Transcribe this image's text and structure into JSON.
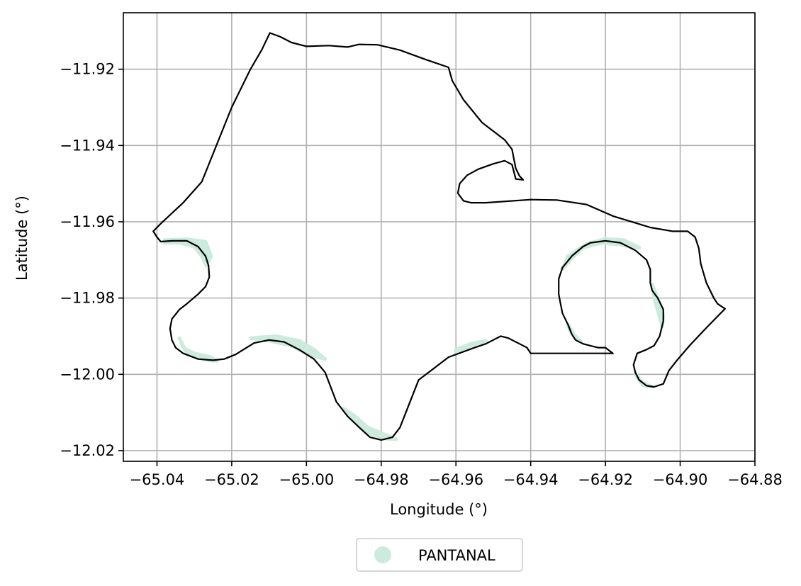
{
  "chart_data": {
    "type": "map",
    "title": "",
    "xlabel": "Longitude (°)",
    "ylabel": "Latitude (°)",
    "xlim": [
      -65.049,
      -64.88
    ],
    "ylim": [
      -12.0228,
      -11.9052
    ],
    "xticks": [
      -65.04,
      -65.02,
      -65.0,
      -64.98,
      -64.96,
      -64.94,
      -64.92,
      -64.9,
      -64.88
    ],
    "xtick_labels": [
      "−65.04",
      "−65.02",
      "−65.00",
      "−64.98",
      "−64.96",
      "−64.94",
      "−64.92",
      "−64.90",
      "−64.88"
    ],
    "yticks": [
      -11.92,
      -11.94,
      -11.96,
      -11.98,
      -12.0,
      -12.02
    ],
    "ytick_labels": [
      "−11.92",
      "−11.94",
      "−11.96",
      "−11.98",
      "−12.00",
      "−12.02"
    ],
    "grid": true,
    "legend_position": "bottom-center",
    "legend": [
      {
        "label": "PANTANAL",
        "color": "#cdebdd"
      }
    ],
    "boundary_color": "#000000",
    "boundary": [
      [
        -65.0098,
        -11.9105
      ],
      [
        -65.007,
        -11.9115
      ],
      [
        -65.004,
        -11.913
      ],
      [
        -65.0,
        -11.914
      ],
      [
        -64.994,
        -11.9138
      ],
      [
        -64.989,
        -11.9142
      ],
      [
        -64.986,
        -11.9135
      ],
      [
        -64.981,
        -11.9136
      ],
      [
        -64.975,
        -11.915
      ],
      [
        -64.968,
        -11.9175
      ],
      [
        -64.962,
        -11.9195
      ],
      [
        -64.961,
        -11.923
      ],
      [
        -64.958,
        -11.928
      ],
      [
        -64.953,
        -11.934
      ],
      [
        -64.947,
        -11.9385
      ],
      [
        -64.945,
        -11.941
      ],
      [
        -64.944,
        -11.946
      ],
      [
        -64.943,
        -11.948
      ],
      [
        -64.942,
        -11.949
      ],
      [
        -64.944,
        -11.9488
      ],
      [
        -64.945,
        -11.945
      ],
      [
        -64.947,
        -11.944
      ],
      [
        -64.95,
        -11.9448
      ],
      [
        -64.954,
        -11.9462
      ],
      [
        -64.957,
        -11.9478
      ],
      [
        -64.959,
        -11.95
      ],
      [
        -64.9595,
        -11.9525
      ],
      [
        -64.958,
        -11.9545
      ],
      [
        -64.956,
        -11.955
      ],
      [
        -64.952,
        -11.955
      ],
      [
        -64.94,
        -11.9542
      ],
      [
        -64.933,
        -11.9543
      ],
      [
        -64.925,
        -11.9555
      ],
      [
        -64.918,
        -11.9585
      ],
      [
        -64.908,
        -11.9615
      ],
      [
        -64.902,
        -11.9625
      ],
      [
        -64.898,
        -11.9625
      ],
      [
        -64.896,
        -11.964
      ],
      [
        -64.895,
        -11.967
      ],
      [
        -64.8945,
        -11.971
      ],
      [
        -64.893,
        -11.976
      ],
      [
        -64.891,
        -11.98
      ],
      [
        -64.89,
        -11.9815
      ],
      [
        -64.888,
        -11.9828
      ],
      [
        -64.893,
        -11.9878
      ],
      [
        -64.8975,
        -11.9925
      ],
      [
        -64.901,
        -11.9965
      ],
      [
        -64.903,
        -11.999
      ],
      [
        -64.9045,
        -12.0025
      ],
      [
        -64.907,
        -12.0033
      ],
      [
        -64.909,
        -12.003
      ],
      [
        -64.911,
        -12.0015
      ],
      [
        -64.912,
        -11.9995
      ],
      [
        -64.9125,
        -11.9975
      ],
      [
        -64.9115,
        -11.9945
      ],
      [
        -64.909,
        -11.9935
      ],
      [
        -64.907,
        -11.9925
      ],
      [
        -64.9055,
        -11.99
      ],
      [
        -64.9045,
        -11.986
      ],
      [
        -64.9045,
        -11.983
      ],
      [
        -64.906,
        -11.98
      ],
      [
        -64.9075,
        -11.978
      ],
      [
        -64.908,
        -11.976
      ],
      [
        -64.908,
        -11.9725
      ],
      [
        -64.909,
        -11.97
      ],
      [
        -64.912,
        -11.9675
      ],
      [
        -64.916,
        -11.9655
      ],
      [
        -64.92,
        -11.965
      ],
      [
        -64.924,
        -11.9655
      ],
      [
        -64.926,
        -11.9665
      ],
      [
        -64.929,
        -11.969
      ],
      [
        -64.9315,
        -11.972
      ],
      [
        -64.9325,
        -11.975
      ],
      [
        -64.9325,
        -11.979
      ],
      [
        -64.932,
        -11.9815
      ],
      [
        -64.9315,
        -11.984
      ],
      [
        -64.93,
        -11.987
      ],
      [
        -64.929,
        -11.9895
      ],
      [
        -64.928,
        -11.991
      ],
      [
        -64.926,
        -11.992
      ],
      [
        -64.924,
        -11.9925
      ],
      [
        -64.922,
        -11.993
      ],
      [
        -64.92,
        -11.993
      ],
      [
        -64.918,
        -11.9945
      ],
      [
        -64.94,
        -11.9945
      ],
      [
        -64.941,
        -11.993
      ],
      [
        -64.943,
        -11.992
      ],
      [
        -64.946,
        -11.9905
      ],
      [
        -64.948,
        -11.99
      ],
      [
        -64.952,
        -11.992
      ],
      [
        -64.955,
        -11.993
      ],
      [
        -64.962,
        -11.9955
      ],
      [
        -64.966,
        -11.9985
      ],
      [
        -64.97,
        -12.0015
      ],
      [
        -64.973,
        -12.009
      ],
      [
        -64.975,
        -12.014
      ],
      [
        -64.977,
        -12.0165
      ],
      [
        -64.98,
        -12.0172
      ],
      [
        -64.983,
        -12.0165
      ],
      [
        -64.986,
        -12.0138
      ],
      [
        -64.989,
        -12.011
      ],
      [
        -64.992,
        -12.0072
      ],
      [
        -64.995,
        -11.9995
      ],
      [
        -64.998,
        -11.996
      ],
      [
        -65.002,
        -11.9935
      ],
      [
        -65.006,
        -11.9915
      ],
      [
        -65.01,
        -11.991
      ],
      [
        -65.014,
        -11.9918
      ],
      [
        -65.019,
        -11.9948
      ],
      [
        -65.022,
        -11.996
      ],
      [
        -65.025,
        -11.9963
      ],
      [
        -65.029,
        -11.996
      ],
      [
        -65.033,
        -11.9945
      ],
      [
        -65.035,
        -11.993
      ],
      [
        -65.036,
        -11.991
      ],
      [
        -65.0365,
        -11.988
      ],
      [
        -65.036,
        -11.9855
      ],
      [
        -65.034,
        -11.983
      ],
      [
        -65.032,
        -11.9815
      ],
      [
        -65.029,
        -11.979
      ],
      [
        -65.027,
        -11.977
      ],
      [
        -65.026,
        -11.9745
      ],
      [
        -65.0262,
        -11.9715
      ],
      [
        -65.027,
        -11.969
      ],
      [
        -65.029,
        -11.9665
      ],
      [
        -65.032,
        -11.965
      ],
      [
        -65.036,
        -11.965
      ],
      [
        -65.039,
        -11.9652
      ],
      [
        -65.04,
        -11.964
      ],
      [
        -65.041,
        -11.9625
      ],
      [
        -65.039,
        -11.9605
      ],
      [
        -65.033,
        -11.955
      ],
      [
        -65.028,
        -11.9495
      ],
      [
        -65.02,
        -11.93
      ],
      [
        -65.015,
        -11.92
      ],
      [
        -65.012,
        -11.915
      ],
      [
        -65.0098,
        -11.9105
      ]
    ],
    "pantanal_patches": [
      [
        [
          -65.038,
          -11.9648
        ],
        [
          -65.032,
          -11.9646
        ],
        [
          -65.027,
          -11.9652
        ],
        [
          -65.0255,
          -11.969
        ],
        [
          -65.0268,
          -11.9715
        ],
        [
          -65.028,
          -11.969
        ],
        [
          -65.03,
          -11.9665
        ],
        [
          -65.034,
          -11.9655
        ],
        [
          -65.038,
          -11.9655
        ]
      ],
      [
        [
          -65.034,
          -11.9905
        ],
        [
          -65.032,
          -11.9945
        ],
        [
          -65.027,
          -11.9962
        ],
        [
          -65.024,
          -11.9965
        ],
        [
          -65.0255,
          -11.9955
        ],
        [
          -65.03,
          -11.9945
        ],
        [
          -65.033,
          -11.993
        ]
      ],
      [
        [
          -65.015,
          -11.9905
        ],
        [
          -65.008,
          -11.99
        ],
        [
          -65.002,
          -11.9912
        ],
        [
          -64.998,
          -11.9935
        ],
        [
          -64.995,
          -11.996
        ],
        [
          -64.999,
          -11.995
        ],
        [
          -65.004,
          -11.9925
        ],
        [
          -65.01,
          -11.9912
        ]
      ],
      [
        [
          -64.99,
          -12.009
        ],
        [
          -64.987,
          -12.0125
        ],
        [
          -64.984,
          -12.015
        ],
        [
          -64.98,
          -12.0168
        ],
        [
          -64.976,
          -12.017
        ],
        [
          -64.979,
          -12.0158
        ],
        [
          -64.9835,
          -12.014
        ],
        [
          -64.987,
          -12.011
        ]
      ],
      [
        [
          -64.96,
          -11.9945
        ],
        [
          -64.956,
          -11.9925
        ],
        [
          -64.952,
          -11.9912
        ],
        [
          -64.956,
          -11.992
        ],
        [
          -64.96,
          -11.9935
        ]
      ],
      [
        [
          -64.9315,
          -11.9725
        ],
        [
          -64.93,
          -11.969
        ],
        [
          -64.925,
          -11.9658
        ],
        [
          -64.92,
          -11.9645
        ],
        [
          -64.915,
          -11.9648
        ],
        [
          -64.911,
          -11.9668
        ],
        [
          -64.916,
          -11.966
        ],
        [
          -64.921,
          -11.9655
        ],
        [
          -64.926,
          -11.9668
        ],
        [
          -64.929,
          -11.9695
        ]
      ],
      [
        [
          -64.9075,
          -11.9765
        ],
        [
          -64.906,
          -11.98
        ],
        [
          -64.9045,
          -11.9845
        ],
        [
          -64.9048,
          -11.9875
        ],
        [
          -64.9058,
          -11.984
        ],
        [
          -64.9068,
          -11.9805
        ]
      ],
      [
        [
          -64.912,
          -11.9998
        ],
        [
          -64.91,
          -12.0022
        ],
        [
          -64.9075,
          -12.0033
        ],
        [
          -64.91,
          -12.0028
        ],
        [
          -64.9112,
          -12.0012
        ]
      ],
      [
        [
          -64.93,
          -11.987
        ],
        [
          -64.9285,
          -11.9895
        ],
        [
          -64.9265,
          -11.9915
        ],
        [
          -64.928,
          -11.9905
        ],
        [
          -64.9295,
          -11.9885
        ]
      ]
    ]
  }
}
